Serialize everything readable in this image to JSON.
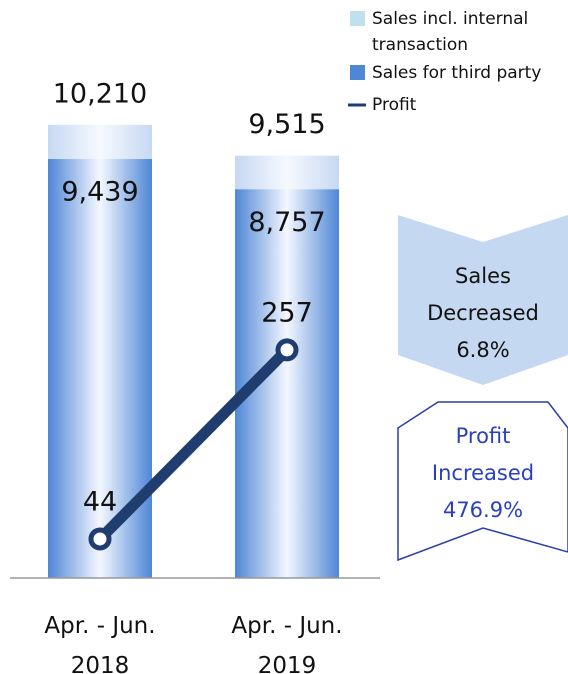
{
  "chart_data": {
    "type": "bar",
    "categories": [
      "Apr. - Jun. 2018",
      "Apr. - Jun. 2019"
    ],
    "series": [
      {
        "name": "Sales incl. internal transaction",
        "color": "#bfe0ec",
        "values": [
          10210,
          9515
        ],
        "value_labels": [
          "10,210",
          "9,515"
        ]
      },
      {
        "name": "Sales for third party",
        "color": "#4f86d6",
        "values": [
          9439,
          8757
        ],
        "value_labels": [
          "9,439",
          "8,757"
        ]
      },
      {
        "name": "Profit",
        "type": "line",
        "axis": "y2",
        "color": "#1f3d6e",
        "values": [
          44,
          257
        ]
      }
    ],
    "ylim": [
      0,
      13000
    ],
    "y2lim": [
      0,
      650
    ],
    "annotations": [
      {
        "text": "Sales Decreased 6.8%"
      },
      {
        "text": "Profit Increased 476.9%"
      }
    ]
  }
}
